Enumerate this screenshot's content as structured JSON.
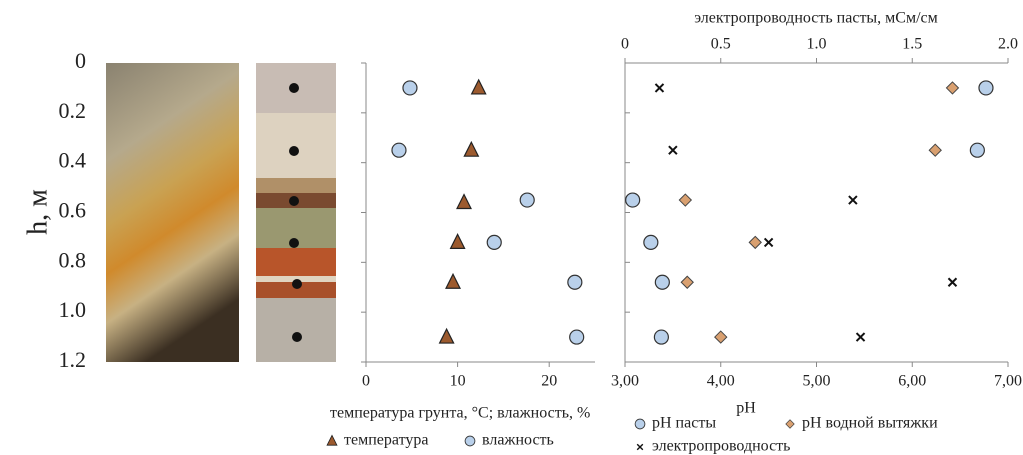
{
  "chart_data": [
    {
      "type": "scatter",
      "xlabel": "температура грунта, °С; влажность, %",
      "ylabel": "h, м",
      "xlim": [
        0,
        25
      ],
      "xticks": [
        0,
        10,
        20
      ],
      "ylim": [
        0,
        1.2
      ],
      "y_reversed": true,
      "yticks": [
        0,
        0.2,
        0.4,
        0.6,
        0.8,
        {
          "value": 1,
          "label": "1.0"
        },
        1.2
      ],
      "series": [
        {
          "name": "температура",
          "marker": "triangle",
          "color": "#9c5a2e",
          "x": [
            12.3,
            11.5,
            10.7,
            10,
            9.5,
            8.8
          ],
          "y": [
            0.1,
            0.35,
            0.56,
            0.72,
            0.88,
            1.1
          ]
        },
        {
          "name": "влажность",
          "marker": "circle",
          "color": "#b9d0ea",
          "x": [
            4.8,
            3.6,
            17.6,
            14,
            22.8,
            23
          ],
          "y": [
            0.1,
            0.35,
            0.55,
            0.72,
            0.88,
            1.1
          ]
        }
      ]
    },
    {
      "type": "scatter",
      "xlabel": "pH",
      "x2label": "электропроводность пасты, мСм/см",
      "xlim": [
        3,
        7
      ],
      "xticks": [
        {
          "value": 3,
          "label": "3,00"
        },
        {
          "value": 4,
          "label": "4,00"
        },
        {
          "value": 5,
          "label": "5,00"
        },
        {
          "value": 6,
          "label": "6,00"
        },
        {
          "value": 7,
          "label": "7,00"
        }
      ],
      "x2lim": [
        0,
        2
      ],
      "x2ticks": [
        0,
        0.5,
        {
          "value": 1,
          "label": "1.0"
        },
        1.5,
        {
          "value": 2,
          "label": "2.0"
        }
      ],
      "ylim": [
        0,
        1.2
      ],
      "y_reversed": true,
      "series": [
        {
          "name": "pH пасты",
          "marker": "circle",
          "color": "#b9d0ea",
          "x": [
            6.77,
            6.68,
            3.08,
            3.27,
            3.39,
            3.38
          ],
          "y": [
            0.1,
            0.35,
            0.55,
            0.72,
            0.88,
            1.1
          ]
        },
        {
          "name": "pH водной вытяжки",
          "marker": "diamond",
          "color": "#d9a070",
          "x": [
            6.42,
            6.24,
            3.63,
            4.36,
            3.65,
            4.0
          ],
          "y": [
            0.1,
            0.35,
            0.55,
            0.72,
            0.88,
            1.1
          ]
        },
        {
          "name": "электропроводность",
          "marker": "cross",
          "color": "#111",
          "axis": "x2",
          "x": [
            0.18,
            0.25,
            1.19,
            0.75,
            1.71,
            1.23
          ],
          "y": [
            0.1,
            0.35,
            0.55,
            0.72,
            0.88,
            1.1
          ]
        }
      ]
    }
  ]
}
